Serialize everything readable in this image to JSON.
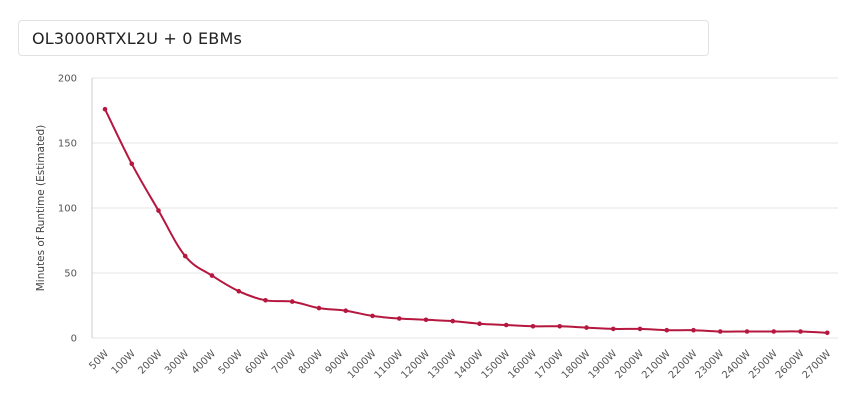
{
  "header": {
    "title": "OL3000RTXL2U + 0 EBMs"
  },
  "colors": {
    "series": "#b5173f",
    "grid": "#e6e6e6",
    "axis": "#cccccc"
  },
  "chart_data": {
    "type": "line",
    "title": "",
    "xlabel": "",
    "ylabel": "Minutes of Runtime (Estimated)",
    "ylim": [
      0,
      200
    ],
    "yticks": [
      0,
      50,
      100,
      150,
      200
    ],
    "grid": true,
    "categories": [
      "50W",
      "100W",
      "200W",
      "300W",
      "400W",
      "500W",
      "600W",
      "700W",
      "800W",
      "900W",
      "1000W",
      "1100W",
      "1200W",
      "1300W",
      "1400W",
      "1500W",
      "1600W",
      "1700W",
      "1800W",
      "1900W",
      "2000W",
      "2100W",
      "2200W",
      "2300W",
      "2400W",
      "2500W",
      "2600W",
      "2700W"
    ],
    "series": [
      {
        "values": [
          176,
          134,
          98,
          63,
          48,
          36,
          29,
          28,
          23,
          21,
          17,
          15,
          14,
          13,
          11,
          10,
          9,
          9,
          8,
          7,
          7,
          6,
          6,
          5,
          5,
          5,
          5,
          4
        ]
      }
    ]
  }
}
